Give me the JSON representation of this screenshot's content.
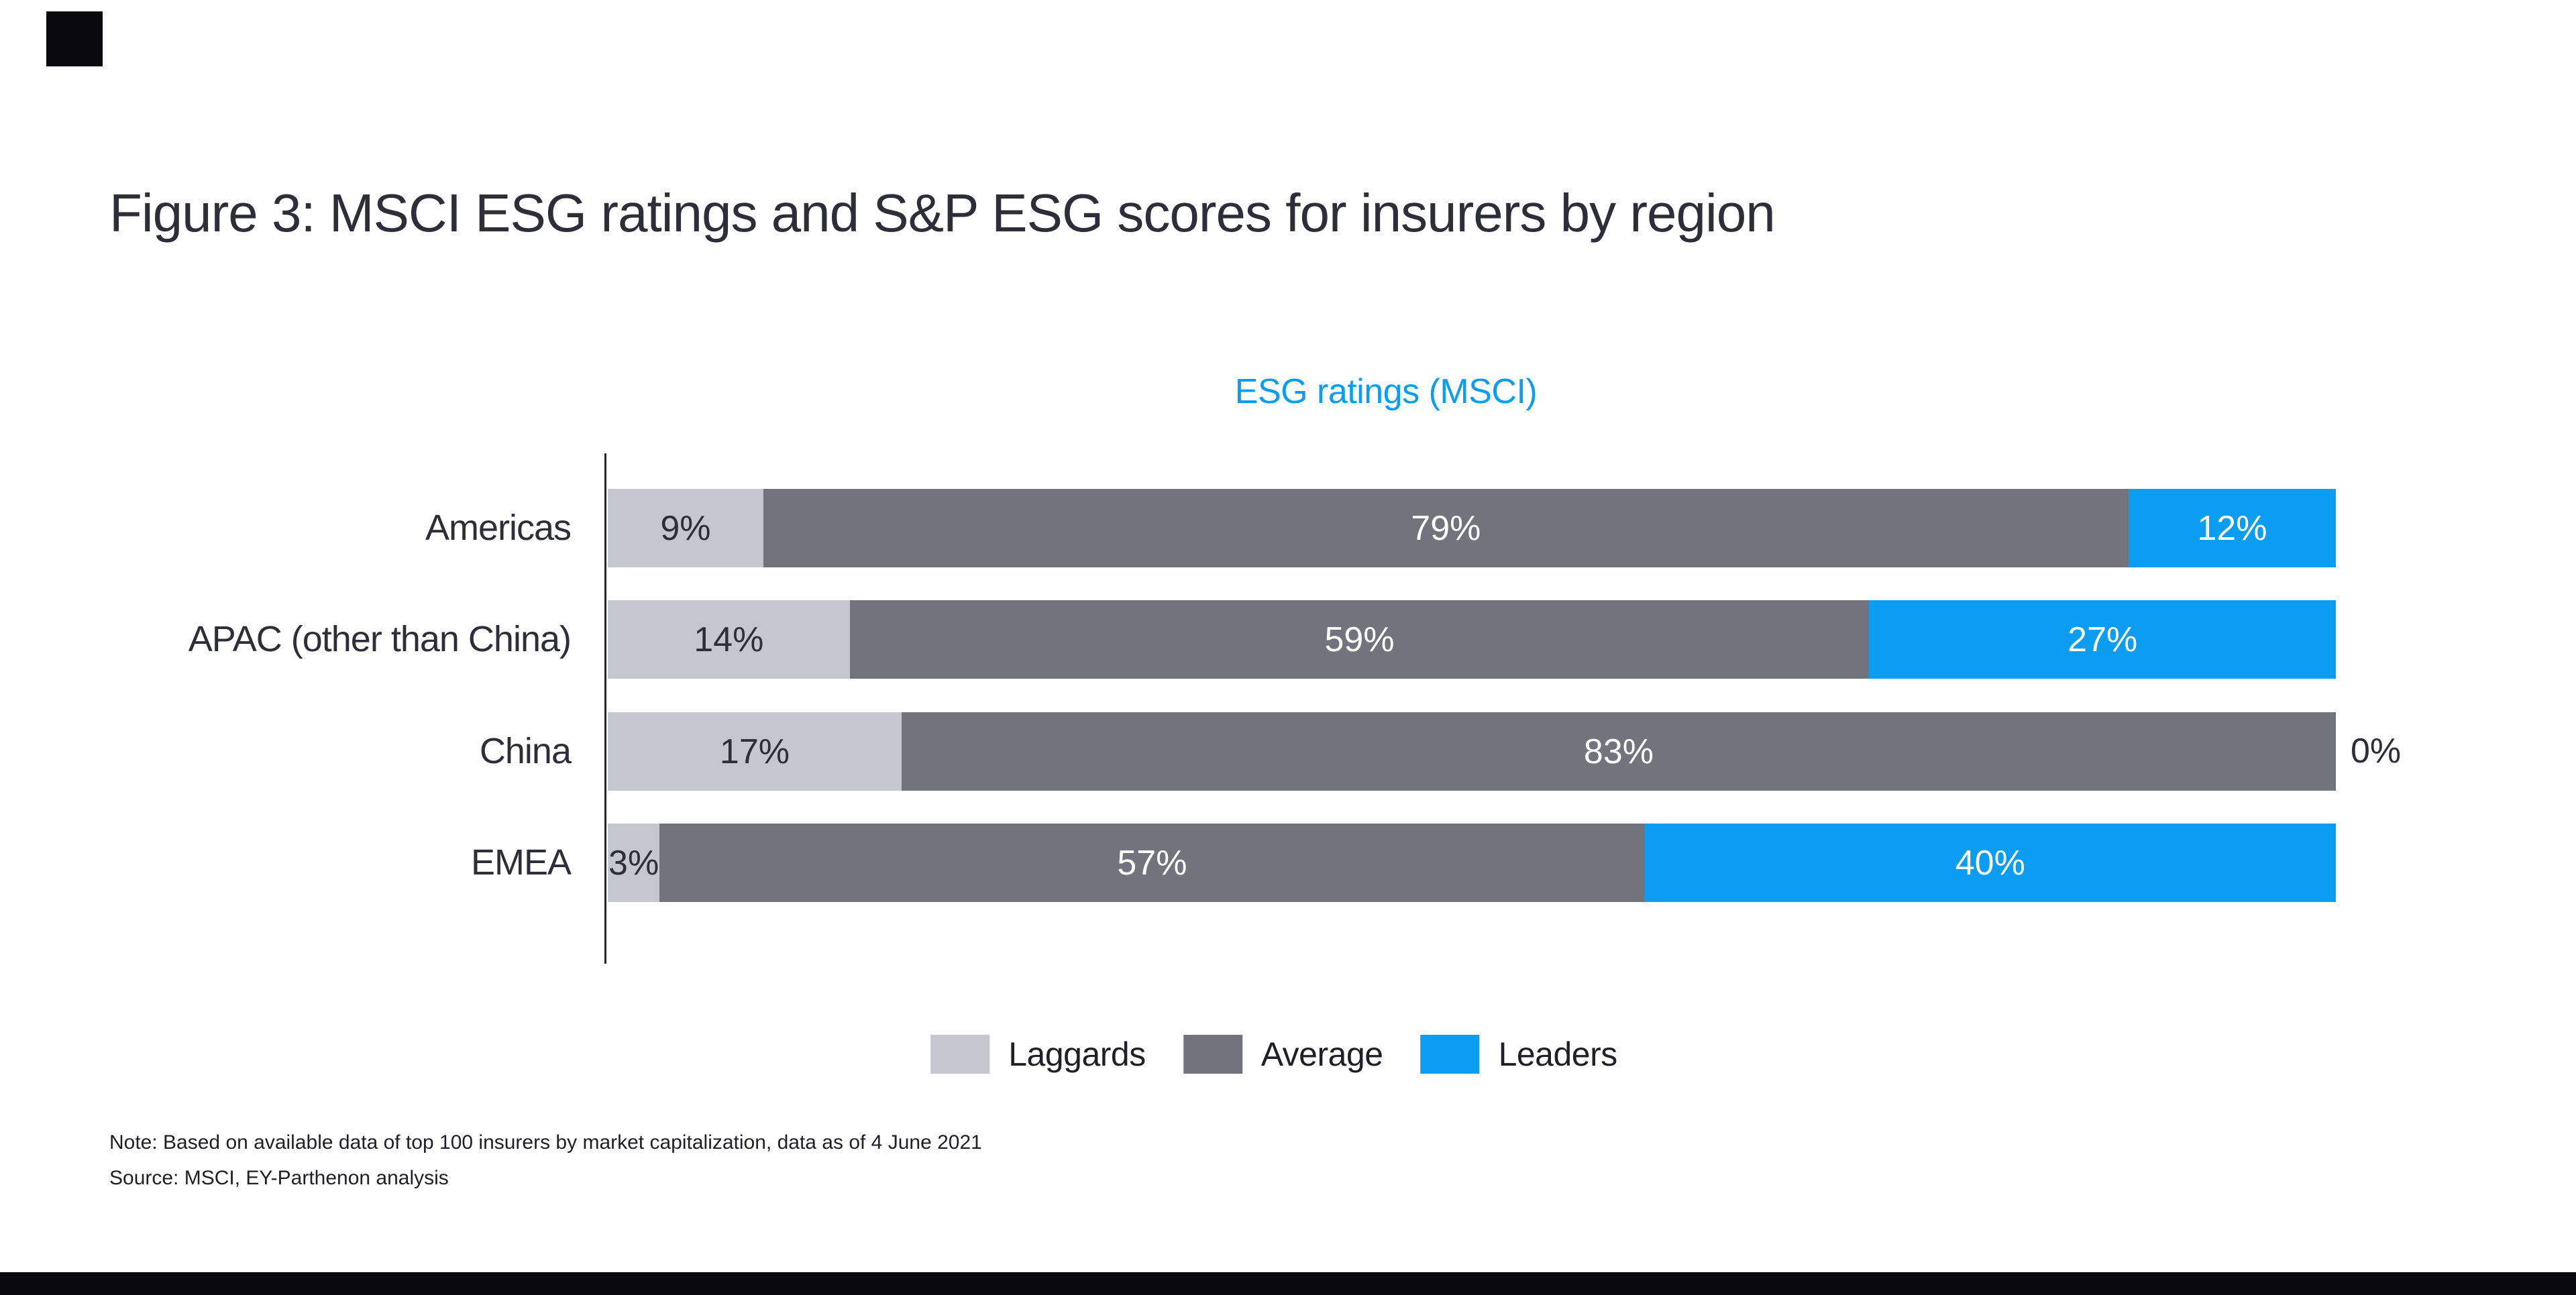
{
  "figure": {
    "title": "Figure 3: MSCI ESG ratings and S&P ESG scores for insurers by region"
  },
  "chart_data": {
    "type": "bar",
    "orientation": "horizontal-stacked",
    "title": "ESG ratings (MSCI)",
    "title_color": "#0A9DF2",
    "categories": [
      "Americas",
      "APAC (other than China)",
      "China",
      "EMEA"
    ],
    "series": [
      {
        "name": "Laggards",
        "color": "#C6C6D0",
        "label_color": "#2E2E38",
        "values": [
          9,
          14,
          17,
          3
        ]
      },
      {
        "name": "Average",
        "color": "#73737D",
        "label_color": "#FFFFFF",
        "values": [
          79,
          59,
          83,
          57
        ]
      },
      {
        "name": "Leaders",
        "color": "#0A9DF2",
        "label_color": "#FFFFFF",
        "values": [
          12,
          27,
          0,
          40
        ]
      }
    ],
    "value_suffix": "%",
    "zero_label_color": "#2E2E38",
    "xlim": [
      0,
      100
    ],
    "grid": false,
    "legend_position": "bottom-center"
  },
  "legend": {
    "items": [
      {
        "label": "Laggards",
        "color": "#C6C6D0"
      },
      {
        "label": "Average",
        "color": "#73737D"
      },
      {
        "label": "Leaders",
        "color": "#0A9DF2"
      }
    ]
  },
  "notes": {
    "note": "Note: Based on available data of top 100 insurers by market capitalization, data as of 4 June 2021",
    "source": "Source: MSCI, EY-Parthenon analysis"
  }
}
